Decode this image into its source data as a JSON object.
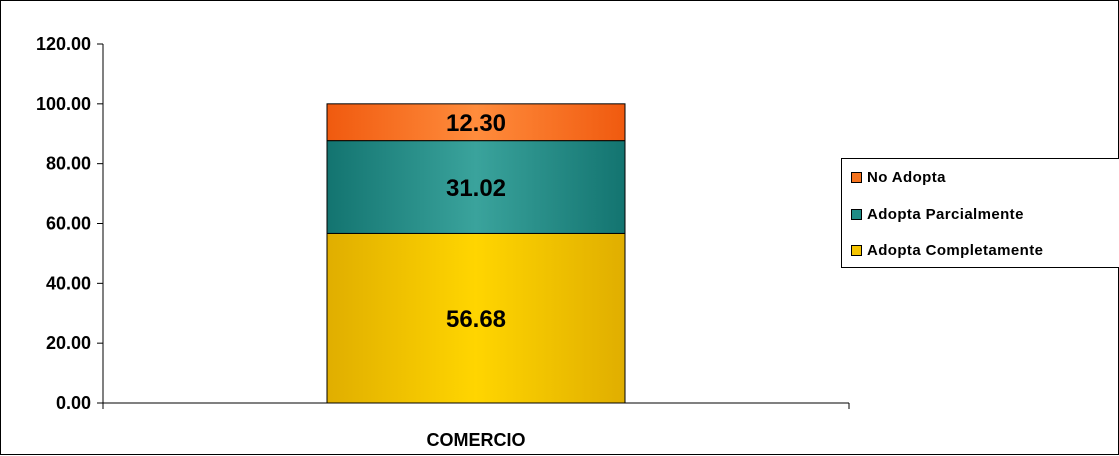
{
  "chart_data": {
    "type": "bar",
    "stacked": true,
    "categories": [
      "COMERCIO"
    ],
    "series": [
      {
        "name": "Adopta Completamente",
        "values": [
          56.68
        ],
        "label": "56.68",
        "color": "#F5C400"
      },
      {
        "name": "Adopta Parcialmente",
        "values": [
          31.02
        ],
        "label": "31.02",
        "color": "#1E8C86"
      },
      {
        "name": "No Adopta",
        "values": [
          12.3
        ],
        "label": "12.30",
        "color": "#F5731E"
      }
    ],
    "legend_order": [
      "No Adopta",
      "Adopta Parcialmente",
      "Adopta Completamente"
    ],
    "legend_position": "right",
    "ylim": [
      0,
      120
    ],
    "yticks": [
      0,
      20,
      40,
      60,
      80,
      100,
      120
    ],
    "ytick_labels": [
      "0.00",
      "20.00",
      "40.00",
      "60.00",
      "80.00",
      "100.00",
      "120.00"
    ],
    "grid": false
  }
}
